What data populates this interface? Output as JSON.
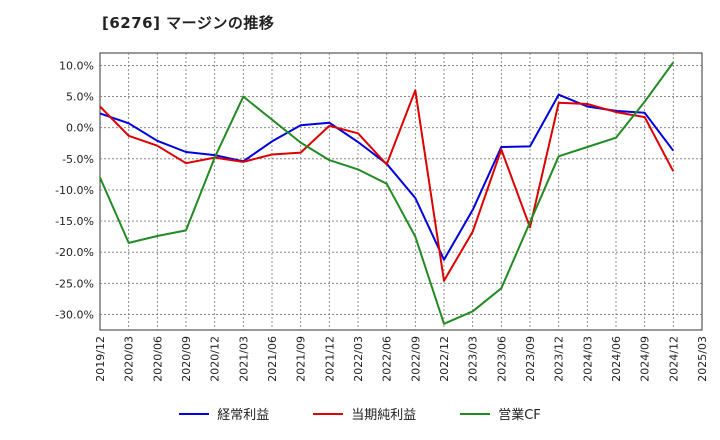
{
  "chart_data": {
    "type": "line",
    "title": "[6276]  マージンの推移",
    "xlabel": "",
    "ylabel": "",
    "x": [
      "2019/12",
      "2020/03",
      "2020/06",
      "2020/09",
      "2020/12",
      "2021/03",
      "2021/06",
      "2021/09",
      "2021/12",
      "2022/03",
      "2022/06",
      "2022/09",
      "2022/12",
      "2023/03",
      "2023/06",
      "2023/09",
      "2023/12",
      "2024/03",
      "2024/06",
      "2024/09",
      "2024/12",
      "2025/03"
    ],
    "ylim": [
      -32.5,
      12
    ],
    "yticks": [
      10,
      5,
      0,
      -5,
      -10,
      -15,
      -20,
      -25,
      -30
    ],
    "ytick_labels": [
      "10.0%",
      "5.0%",
      "0.0%",
      "-5.0%",
      "-10.0%",
      "-15.0%",
      "-20.0%",
      "-25.0%",
      "-30.0%"
    ],
    "grid": true,
    "legend_position": "bottom",
    "series": [
      {
        "name": "経常利益",
        "color": "#0000dd",
        "points": [
          [
            "2019/12",
            2.3
          ],
          [
            "2020/03",
            0.7
          ],
          [
            "2020/06",
            -2.1
          ],
          [
            "2020/09",
            -3.9
          ],
          [
            "2020/12",
            -4.4
          ],
          [
            "2021/03",
            -5.4
          ],
          [
            "2021/06",
            -2.2
          ],
          [
            "2021/09",
            0.4
          ],
          [
            "2021/12",
            0.8
          ],
          [
            "2022/03",
            -2.3
          ],
          [
            "2022/06",
            -5.8
          ],
          [
            "2022/09",
            -11.3
          ],
          [
            "2022/12",
            -21.2
          ],
          [
            "2023/03",
            -13.2
          ],
          [
            "2023/06",
            -3.1
          ],
          [
            "2023/09",
            -3.0
          ],
          [
            "2023/12",
            5.3
          ],
          [
            "2024/03",
            3.4
          ],
          [
            "2024/06",
            2.7
          ],
          [
            "2024/09",
            2.4
          ],
          [
            "2024/12",
            -3.7
          ]
        ]
      },
      {
        "name": "当期純利益",
        "color": "#dd0000",
        "points": [
          [
            "2019/12",
            3.4
          ],
          [
            "2020/03",
            -1.3
          ],
          [
            "2020/06",
            -2.9
          ],
          [
            "2020/09",
            -5.7
          ],
          [
            "2020/12",
            -4.8
          ],
          [
            "2021/03",
            -5.5
          ],
          [
            "2021/06",
            -4.3
          ],
          [
            "2021/09",
            -4.0
          ],
          [
            "2021/12",
            0.3
          ],
          [
            "2022/03",
            -0.9
          ],
          [
            "2022/06",
            -5.9
          ],
          [
            "2022/09",
            6.0
          ],
          [
            "2022/12",
            -24.6
          ],
          [
            "2023/03",
            -16.7
          ],
          [
            "2023/06",
            -3.5
          ],
          [
            "2023/09",
            -16.0
          ],
          [
            "2023/12",
            4.0
          ],
          [
            "2024/03",
            3.8
          ],
          [
            "2024/06",
            2.5
          ],
          [
            "2024/09",
            1.7
          ],
          [
            "2024/12",
            -7.0
          ]
        ]
      },
      {
        "name": "営業CF",
        "color": "#228b22",
        "points": [
          [
            "2019/12",
            -8.0
          ],
          [
            "2020/03",
            -18.5
          ],
          [
            "2020/06",
            -17.4
          ],
          [
            "2020/09",
            -16.5
          ],
          [
            "2020/12",
            -4.8
          ],
          [
            "2021/03",
            5.0
          ],
          [
            "2021/06",
            1.3
          ],
          [
            "2021/09",
            -2.4
          ],
          [
            "2021/12",
            -5.2
          ],
          [
            "2022/03",
            -6.7
          ],
          [
            "2022/06",
            -9.0
          ],
          [
            "2022/09",
            -17.5
          ],
          [
            "2022/12",
            -31.5
          ],
          [
            "2023/03",
            -29.5
          ],
          [
            "2023/06",
            -25.8
          ],
          [
            "2023/09",
            -15.2
          ],
          [
            "2023/12",
            -4.6
          ],
          [
            "2024/03",
            -3.1
          ],
          [
            "2024/06",
            -1.6
          ],
          [
            "2024/09",
            4.2
          ],
          [
            "2024/12",
            10.5
          ]
        ]
      }
    ]
  }
}
